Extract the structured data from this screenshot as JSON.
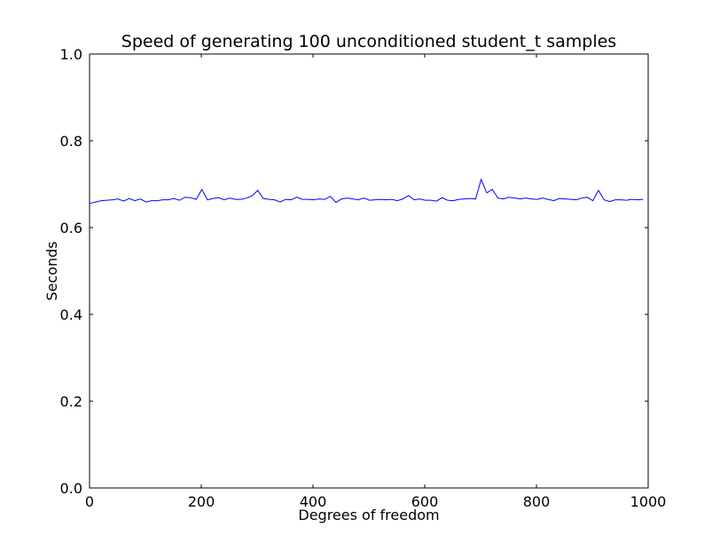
{
  "chart_data": {
    "type": "line",
    "title": "Speed of generating 100 unconditioned student_t samples",
    "xlabel": "Degrees of freedom",
    "ylabel": "Seconds",
    "xlim": [
      0,
      1000
    ],
    "ylim": [
      0.0,
      1.0
    ],
    "xticks": [
      0,
      200,
      400,
      600,
      800,
      1000
    ],
    "xtick_labels": [
      "0",
      "200",
      "400",
      "600",
      "800",
      "1000"
    ],
    "yticks": [
      0.0,
      0.2,
      0.4,
      0.6,
      0.8,
      1.0
    ],
    "ytick_labels": [
      "0.0",
      "0.2",
      "0.4",
      "0.6",
      "0.8",
      "1.0"
    ],
    "grid": false,
    "series": [
      {
        "color": "#0000ff",
        "x": [
          1,
          11,
          21,
          31,
          41,
          51,
          61,
          71,
          81,
          91,
          101,
          111,
          121,
          131,
          141,
          151,
          161,
          171,
          181,
          191,
          201,
          211,
          221,
          231,
          241,
          251,
          261,
          271,
          281,
          291,
          301,
          311,
          321,
          331,
          341,
          351,
          361,
          371,
          381,
          391,
          401,
          411,
          421,
          431,
          441,
          451,
          461,
          471,
          481,
          491,
          501,
          511,
          521,
          531,
          541,
          551,
          561,
          571,
          581,
          591,
          601,
          611,
          621,
          631,
          641,
          651,
          661,
          671,
          681,
          691,
          701,
          711,
          721,
          731,
          741,
          751,
          761,
          771,
          781,
          791,
          801,
          811,
          821,
          831,
          841,
          851,
          861,
          871,
          881,
          891,
          901,
          911,
          921,
          931,
          941,
          951,
          961,
          971,
          981,
          991
        ],
        "y": [
          0.656,
          0.659,
          0.662,
          0.663,
          0.664,
          0.666,
          0.661,
          0.667,
          0.662,
          0.666,
          0.659,
          0.662,
          0.662,
          0.664,
          0.664,
          0.667,
          0.663,
          0.67,
          0.669,
          0.665,
          0.688,
          0.664,
          0.667,
          0.669,
          0.664,
          0.668,
          0.665,
          0.665,
          0.668,
          0.673,
          0.686,
          0.667,
          0.665,
          0.664,
          0.659,
          0.665,
          0.664,
          0.67,
          0.665,
          0.665,
          0.664,
          0.666,
          0.665,
          0.672,
          0.658,
          0.666,
          0.668,
          0.666,
          0.664,
          0.668,
          0.663,
          0.664,
          0.665,
          0.664,
          0.665,
          0.662,
          0.666,
          0.674,
          0.664,
          0.666,
          0.663,
          0.663,
          0.661,
          0.669,
          0.663,
          0.662,
          0.665,
          0.666,
          0.667,
          0.666,
          0.711,
          0.68,
          0.688,
          0.668,
          0.666,
          0.67,
          0.668,
          0.666,
          0.668,
          0.666,
          0.665,
          0.668,
          0.665,
          0.662,
          0.667,
          0.666,
          0.665,
          0.664,
          0.668,
          0.67,
          0.662,
          0.686,
          0.664,
          0.66,
          0.664,
          0.664,
          0.663,
          0.665,
          0.664,
          0.665
        ]
      }
    ]
  }
}
